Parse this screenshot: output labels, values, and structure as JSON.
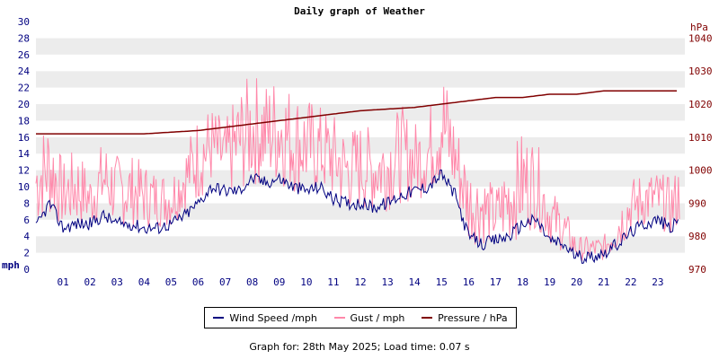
{
  "chart_data": {
    "type": "line",
    "title": "Daily graph of Weather",
    "left_axis_unit": "mph",
    "right_axis_unit": "hPa",
    "x_ticks": [
      "01",
      "02",
      "03",
      "04",
      "05",
      "06",
      "07",
      "08",
      "09",
      "10",
      "11",
      "12",
      "13",
      "14",
      "15",
      "16",
      "17",
      "18",
      "19",
      "20",
      "21",
      "22",
      "23"
    ],
    "x_range_hours": [
      0,
      24
    ],
    "y_left_ticks": [
      "0",
      "2",
      "4",
      "6",
      "8",
      "10",
      "12",
      "14",
      "16",
      "18",
      "20",
      "22",
      "24",
      "26",
      "28",
      "30"
    ],
    "ylim_left": [
      0,
      30
    ],
    "y_right_ticks": [
      "970",
      "980",
      "990",
      "1000",
      "1010",
      "1020",
      "1030",
      "1040"
    ],
    "ylim_right": [
      970,
      1045
    ],
    "grid": "horizontal alternating bands",
    "legend_position": "bottom-center",
    "series": [
      {
        "name": "Wind Speed /mph",
        "color": "#000080",
        "axis": "left",
        "x": [
          0,
          0.5,
          1,
          1.5,
          2,
          2.5,
          3,
          3.5,
          4,
          4.5,
          5,
          5.5,
          6,
          6.5,
          7,
          7.5,
          8,
          8.5,
          9,
          9.5,
          10,
          10.5,
          11,
          11.5,
          12,
          12.5,
          13,
          13.5,
          14,
          14.5,
          15,
          15.5,
          16,
          16.5,
          17,
          17.5,
          18,
          18.5,
          19,
          19.5,
          20,
          20.5,
          21,
          21.5,
          22,
          22.5,
          23,
          23.5,
          23.8
        ],
        "y": [
          5,
          8,
          5,
          5.5,
          5.5,
          6.5,
          5.5,
          5.5,
          5,
          5,
          5.5,
          6.5,
          8,
          10,
          9.5,
          9.5,
          11,
          10.5,
          11,
          10,
          9.5,
          10,
          8.5,
          8,
          8,
          7.5,
          8,
          9,
          9.5,
          10,
          11.5,
          9,
          4,
          3,
          3.5,
          4,
          5.5,
          6,
          3.5,
          3,
          1.5,
          1.5,
          2,
          3,
          4.5,
          5.5,
          6,
          5,
          6
        ]
      },
      {
        "name": "Gust / mph",
        "color": "#ff88aa",
        "axis": "left",
        "x": [
          0,
          0.5,
          1,
          1.5,
          2,
          2.5,
          3,
          3.5,
          4,
          4.5,
          5,
          5.5,
          6,
          6.5,
          7,
          7.5,
          8,
          8.5,
          9,
          9.5,
          10,
          10.5,
          11,
          11.5,
          12,
          12.5,
          13,
          13.5,
          14,
          14.5,
          15,
          15.5,
          16,
          16.5,
          17,
          17.5,
          18,
          18.5,
          19,
          19.5,
          20,
          20.5,
          21,
          21.5,
          22,
          22.5,
          23,
          23.5,
          23.8
        ],
        "y_low": [
          5,
          6,
          5,
          5,
          5,
          6,
          5,
          5,
          5,
          5,
          5,
          7,
          8,
          10,
          9,
          9,
          10,
          10,
          10,
          9,
          9,
          9,
          8,
          7,
          7,
          7,
          7,
          8,
          8,
          9,
          10,
          8,
          3,
          3,
          3,
          3,
          4,
          5,
          3,
          2,
          1,
          1,
          1,
          2,
          4,
          5,
          5,
          4,
          5
        ],
        "y_high": [
          16,
          19,
          13,
          15,
          12,
          16,
          14,
          14,
          13,
          12,
          12,
          15,
          19,
          20,
          18,
          22,
          24,
          23,
          24,
          22,
          21,
          20,
          19,
          17,
          18,
          17,
          18,
          20,
          18,
          19,
          26,
          19,
          13,
          12,
          10,
          14,
          17,
          16,
          10,
          8,
          4,
          4,
          4,
          8,
          11,
          12,
          12,
          11,
          13
        ]
      },
      {
        "name": "Pressure / hPa",
        "color": "#800000",
        "axis": "right",
        "x": [
          0,
          2,
          4,
          6,
          8,
          10,
          12,
          14,
          15,
          16,
          17,
          18,
          19,
          20,
          21,
          22,
          23,
          23.8
        ],
        "y": [
          1011,
          1011,
          1011,
          1012,
          1014,
          1016,
          1018,
          1019,
          1020,
          1021,
          1022,
          1022,
          1023,
          1023,
          1024,
          1024,
          1024,
          1024
        ]
      }
    ]
  },
  "legend": [
    {
      "label": "Wind Speed /mph",
      "color": "#000080"
    },
    {
      "label": "Gust / mph",
      "color": "#ff88aa"
    },
    {
      "label": "Pressure / hPa",
      "color": "#800000"
    }
  ],
  "footer": "Graph for: 28th May 2025; Load time: 0.07 s"
}
